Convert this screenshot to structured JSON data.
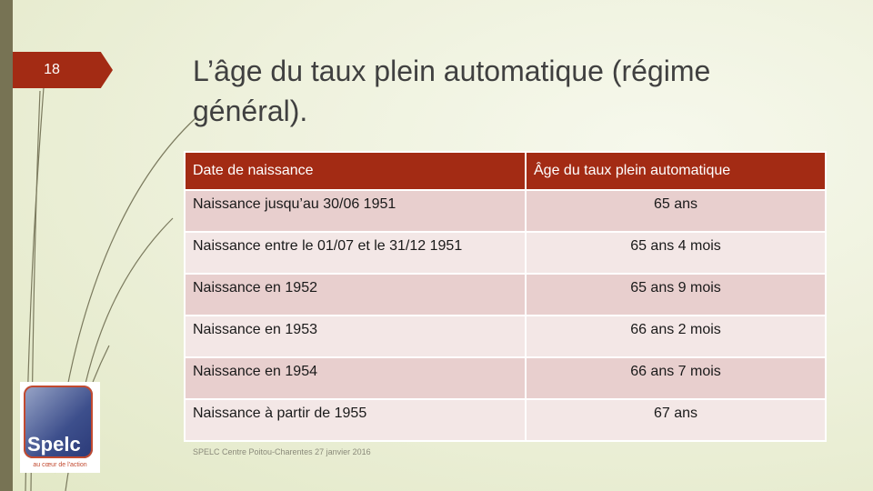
{
  "slide": {
    "number": "18",
    "title": "L’âge du taux plein automatique (régime général).",
    "footer": "SPELC Centre Poitou-Charentes 27 janvier 2016"
  },
  "table": {
    "headers": [
      "Date de naissance",
      "Âge du taux plein automatique"
    ],
    "rows": [
      {
        "birth": "Naissance jusqu’au 30/06 1951",
        "age": "65 ans"
      },
      {
        "birth": "Naissance entre le 01/07 et le 31/12 1951",
        "age": "65 ans 4 mois"
      },
      {
        "birth": "Naissance en 1952",
        "age": "65 ans 9 mois"
      },
      {
        "birth": "Naissance en 1953",
        "age": "66 ans 2 mois"
      },
      {
        "birth": "Naissance en 1954",
        "age": "66 ans 7 mois"
      },
      {
        "birth": "Naissance à partir de 1955",
        "age": "67 ans"
      }
    ]
  },
  "logo": {
    "name": "Spelc",
    "tagline": "au cœur de l'action"
  },
  "colors": {
    "accent": "#a32b14",
    "row_dark": "#e8cfce",
    "row_light": "#f3e7e6",
    "sidebar": "#777354"
  }
}
